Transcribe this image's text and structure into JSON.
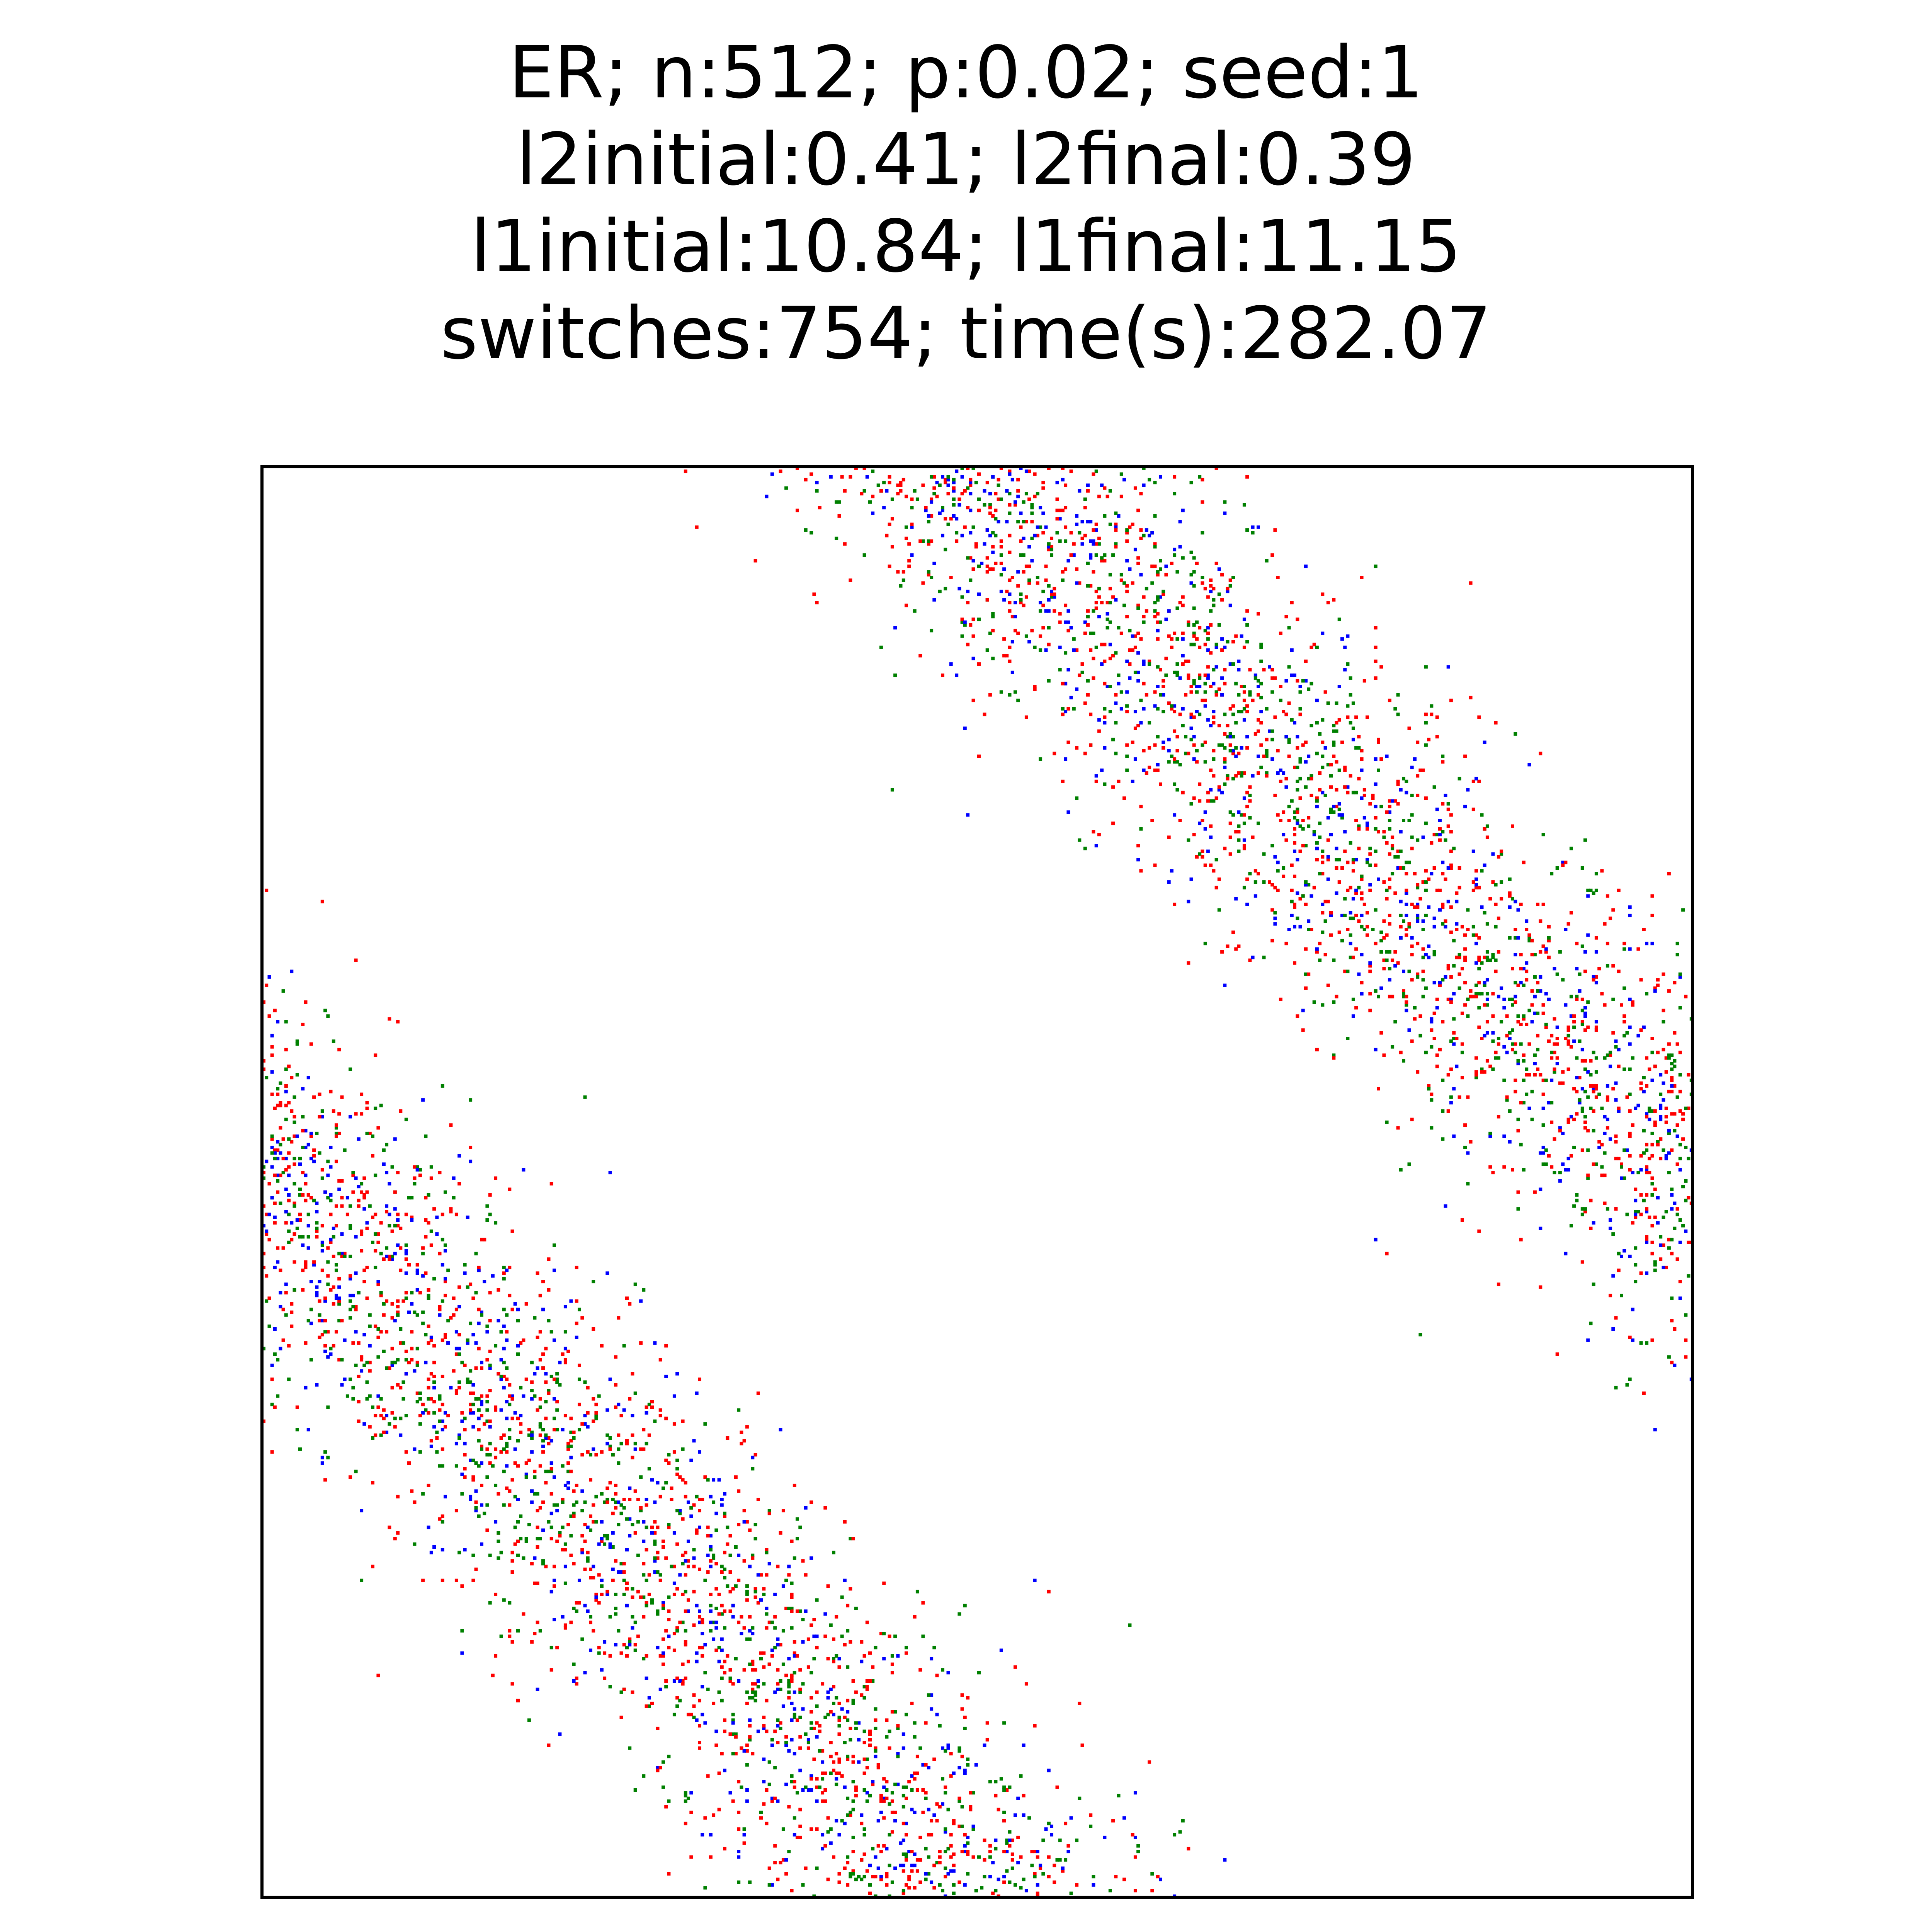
{
  "chart_data": {
    "type": "scatter",
    "title_lines": [
      "ER; n:512; p:0.02; seed:1",
      "l2initial:0.41; l2final:0.39",
      "l1initial:10.84; l1final:11.15",
      "switches:754; time(s):282.07"
    ],
    "xlim": [
      0,
      512
    ],
    "ylim": [
      512,
      0
    ],
    "axis_ticks": "none",
    "grid": false,
    "legend": "none",
    "marker": "pixel",
    "distribution": "annular band around the main diagonal of the adjacency matrix, wrapping at the top-left and bottom-right corners",
    "series_colors": [
      "#ff0000",
      "#008000",
      "#0000ff"
    ],
    "series_share": [
      0.45,
      0.32,
      0.23
    ],
    "n_points_per_side": 2600,
    "symmetric": true,
    "band": {
      "center_offset": 240,
      "halfwidth": 60,
      "wrap": 512
    },
    "random_seed": 1
  }
}
